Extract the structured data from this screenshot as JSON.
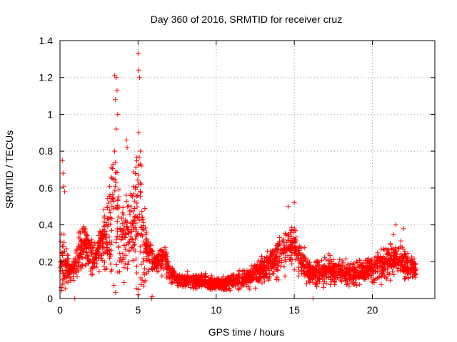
{
  "chart_data": {
    "type": "scatter",
    "title": "Day 360 of 2016, SRMTID for receiver cruz",
    "xlabel": "GPS time / hours",
    "ylabel": "SRMTID / TECUs",
    "xlim": [
      0,
      24
    ],
    "ylim": [
      0,
      1.4
    ],
    "xticks": [
      0,
      5,
      10,
      15,
      20
    ],
    "xtick_labels": [
      "0",
      "5",
      "10",
      "15",
      "20"
    ],
    "yticks": [
      0,
      0.2,
      0.4,
      0.6,
      0.8,
      1.0,
      1.2,
      1.4
    ],
    "ytick_labels": [
      "0",
      "0.2",
      "0.4",
      "0.6",
      "0.8",
      "1",
      "1.2",
      "1.4"
    ],
    "grid": true,
    "marker": "+",
    "color": "#ff0000",
    "profile_hours": [
      0.0,
      0.25,
      0.5,
      0.8,
      1.0,
      1.2,
      1.5,
      1.8,
      2.1,
      2.4,
      2.7,
      3.0,
      3.3,
      3.5,
      3.7,
      3.9,
      4.2,
      4.5,
      4.8,
      5.0,
      5.2,
      5.4,
      5.6,
      5.9,
      6.3,
      6.7,
      7.0,
      7.5,
      8.0,
      8.5,
      9.0,
      9.5,
      10.0,
      10.5,
      11.0,
      11.5,
      12.0,
      12.5,
      13.0,
      13.5,
      14.0,
      14.5,
      14.8,
      15.0,
      15.3,
      15.7,
      16.0,
      16.5,
      17.0,
      17.5,
      18.0,
      18.5,
      19.0,
      19.5,
      20.0,
      20.5,
      21.0,
      21.3,
      21.6,
      22.0,
      22.4,
      22.8
    ],
    "profile_median": [
      0.2,
      0.18,
      0.15,
      0.14,
      0.17,
      0.25,
      0.3,
      0.26,
      0.22,
      0.25,
      0.3,
      0.35,
      0.4,
      0.45,
      0.38,
      0.3,
      0.32,
      0.38,
      0.42,
      0.45,
      0.38,
      0.3,
      0.25,
      0.2,
      0.2,
      0.22,
      0.14,
      0.1,
      0.1,
      0.1,
      0.09,
      0.09,
      0.08,
      0.08,
      0.09,
      0.1,
      0.11,
      0.13,
      0.16,
      0.18,
      0.22,
      0.26,
      0.28,
      0.27,
      0.22,
      0.16,
      0.13,
      0.14,
      0.15,
      0.15,
      0.14,
      0.13,
      0.14,
      0.15,
      0.16,
      0.18,
      0.2,
      0.23,
      0.22,
      0.19,
      0.17,
      0.16
    ],
    "profile_spread": [
      0.12,
      0.2,
      0.08,
      0.06,
      0.08,
      0.12,
      0.12,
      0.1,
      0.1,
      0.1,
      0.12,
      0.2,
      0.35,
      0.45,
      0.3,
      0.18,
      0.2,
      0.25,
      0.3,
      0.45,
      0.3,
      0.22,
      0.15,
      0.08,
      0.06,
      0.1,
      0.05,
      0.04,
      0.04,
      0.04,
      0.04,
      0.04,
      0.03,
      0.04,
      0.04,
      0.05,
      0.05,
      0.06,
      0.08,
      0.08,
      0.1,
      0.12,
      0.14,
      0.13,
      0.1,
      0.07,
      0.06,
      0.08,
      0.08,
      0.07,
      0.07,
      0.06,
      0.07,
      0.07,
      0.08,
      0.09,
      0.1,
      0.11,
      0.1,
      0.09,
      0.08,
      0.07
    ],
    "sample_count": 2600,
    "x_max_hours": 22.8,
    "notable_points": [
      {
        "x": 0.15,
        "y": 0.75
      },
      {
        "x": 0.2,
        "y": 0.68
      },
      {
        "x": 0.25,
        "y": 0.61
      },
      {
        "x": 0.3,
        "y": 0.58
      },
      {
        "x": 0.95,
        "y": 0.0
      },
      {
        "x": 3.5,
        "y": 1.21
      },
      {
        "x": 3.6,
        "y": 1.2
      },
      {
        "x": 3.65,
        "y": 1.13
      },
      {
        "x": 3.55,
        "y": 1.08
      },
      {
        "x": 3.7,
        "y": 1.0
      },
      {
        "x": 3.6,
        "y": 0.92
      },
      {
        "x": 3.5,
        "y": 0.8
      },
      {
        "x": 5.0,
        "y": 1.33
      },
      {
        "x": 5.05,
        "y": 1.24
      },
      {
        "x": 5.1,
        "y": 1.2
      },
      {
        "x": 5.05,
        "y": 0.9
      },
      {
        "x": 5.15,
        "y": 0.8
      },
      {
        "x": 5.2,
        "y": 0.72
      },
      {
        "x": 4.25,
        "y": 0.86
      },
      {
        "x": 4.3,
        "y": 0.82
      },
      {
        "x": 5.85,
        "y": 0.0
      },
      {
        "x": 5.9,
        "y": 0.01
      },
      {
        "x": 14.6,
        "y": 0.5
      },
      {
        "x": 15.0,
        "y": 0.52
      },
      {
        "x": 16.2,
        "y": 0.0
      },
      {
        "x": 21.5,
        "y": 0.4
      },
      {
        "x": 22.0,
        "y": 0.38
      }
    ]
  }
}
